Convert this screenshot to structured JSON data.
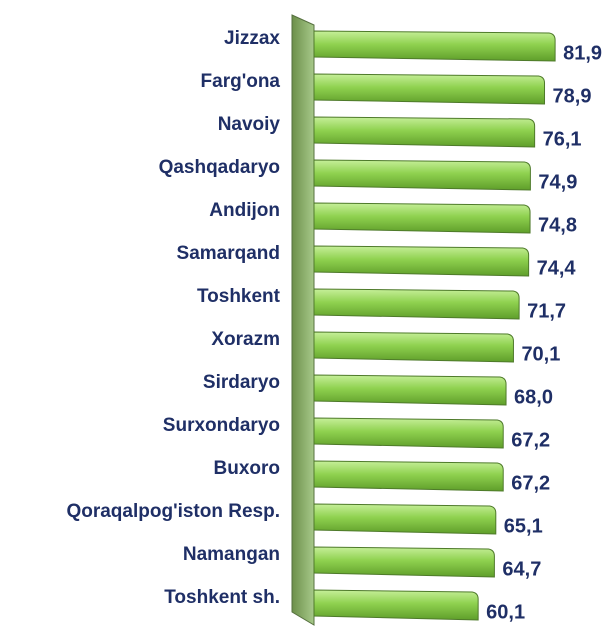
{
  "chart_data": {
    "type": "bar",
    "orientation": "horizontal",
    "categories": [
      "Jizzax",
      "Farg'ona",
      "Navoiy",
      "Qashqadaryo",
      "Andijon",
      "Samarqand",
      "Toshkent",
      "Xorazm",
      "Sirdaryo",
      "Surxondaryo",
      "Buxoro",
      "Qoraqalpog'iston Resp.",
      "Namangan",
      "Toshkent sh."
    ],
    "values": [
      81.9,
      78.9,
      76.1,
      74.9,
      74.8,
      74.4,
      71.7,
      70.1,
      68.0,
      67.2,
      67.2,
      65.1,
      64.7,
      60.1
    ],
    "value_labels": [
      "81,9",
      "78,9",
      "76,1",
      "74,9",
      "74,8",
      "74,4",
      "71,7",
      "70,1",
      "68,0",
      "67,2",
      "67,2",
      "65,1",
      "64,7",
      "60,1"
    ],
    "color": "#92d050"
  }
}
